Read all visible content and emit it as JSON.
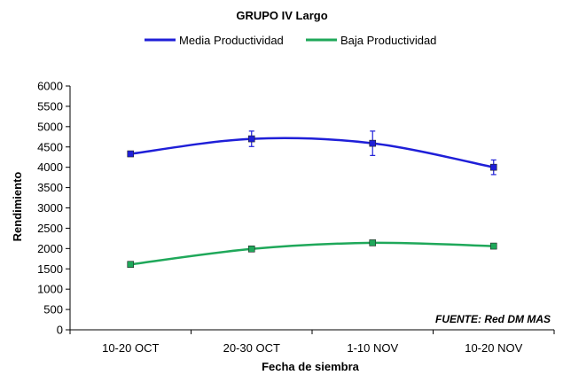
{
  "chart_data": {
    "type": "line",
    "title": "GRUPO IV Largo",
    "xlabel": "Fecha de siembra",
    "ylabel": "Rendimiento",
    "categories": [
      "10-20 OCT",
      "20-30 OCT",
      "1-10 NOV",
      "10-20 NOV"
    ],
    "ylim": [
      0,
      6000
    ],
    "ytick_step": 500,
    "grid": false,
    "legend_position": "top",
    "source_note": "FUENTE: Red DM MAS",
    "series": [
      {
        "name": "Media Productividad",
        "color": "#1f1fd8",
        "marker": "square",
        "values": [
          4330,
          4700,
          4590,
          4000
        ],
        "error": [
          null,
          190,
          300,
          180
        ]
      },
      {
        "name": "Baja Productividad",
        "color": "#1fa85a",
        "marker": "square",
        "values": [
          1610,
          1990,
          2140,
          2060
        ],
        "error": [
          null,
          null,
          null,
          null
        ]
      }
    ]
  }
}
